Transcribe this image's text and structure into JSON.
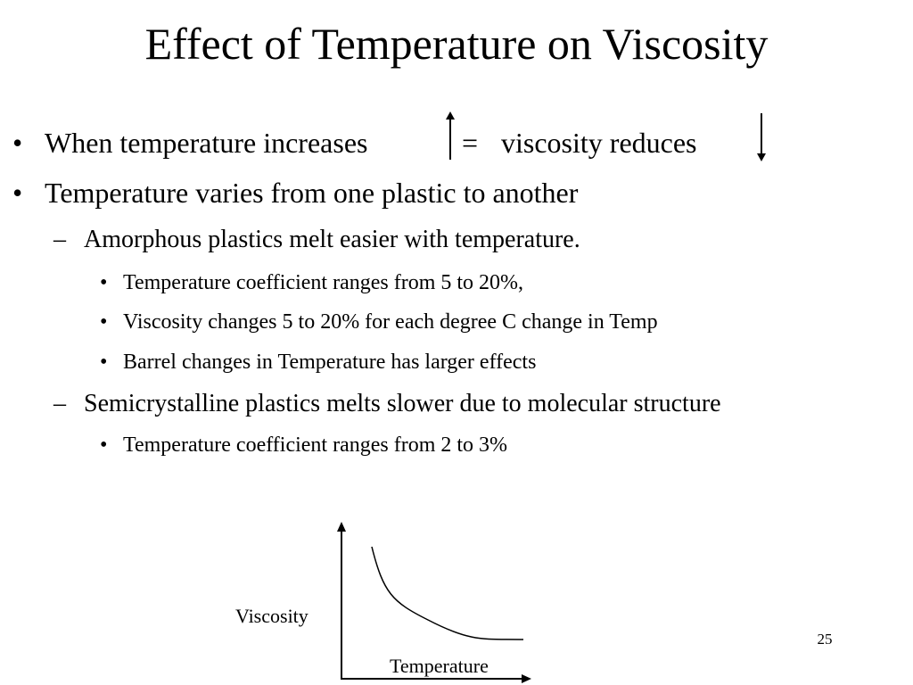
{
  "slide": {
    "title": "Effect of Temperature on Viscosity",
    "page_number": "25"
  },
  "bullets": {
    "marker_l1": "•",
    "marker_l2": "–",
    "marker_l3": "•",
    "b1_part1": "When temperature increases",
    "b1_equals": "=",
    "b1_part2": "viscosity reduces",
    "b1_up_icon": "up-arrow",
    "b1_down_icon": "down-arrow",
    "b2": "Temperature varies from one plastic to another",
    "b2_1": "Amorphous plastics melt easier with temperature.",
    "b2_1_1": "Temperature coefficient  ranges from 5 to 20%,",
    "b2_1_2": "Viscosity changes 5 to 20% for each degree C change in Temp",
    "b2_1_3": "Barrel changes in Temperature has larger effects",
    "b2_2": "Semicrystalline plastics melts slower due to molecular structure",
    "b2_2_1": "Temperature coefficient ranges from 2 to 3%"
  },
  "graph": {
    "y_label": "Viscosity",
    "x_label": "Temperature"
  }
}
